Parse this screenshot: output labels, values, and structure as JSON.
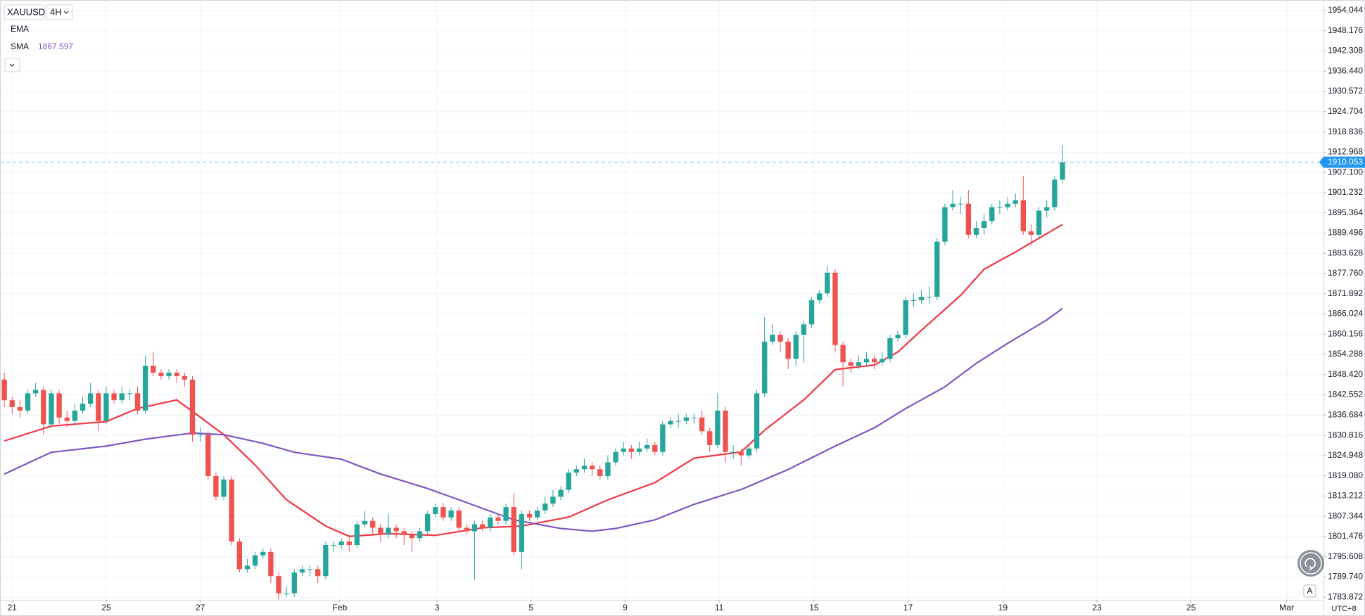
{
  "chart_data": {
    "type": "candlestick",
    "symbol": "XAUUSD",
    "interval": "4H",
    "timezone": "UTC+8",
    "up_color": "#26a69a",
    "down_color": "#ef5350",
    "current_price": 1910.053,
    "current_price_color": "#2196f3",
    "grid": true,
    "xlim": [
      -0.55,
      168.3
    ],
    "ylim": [
      1783.1,
      1957.1
    ],
    "xticks": [
      {
        "value": 1,
        "label": "21"
      },
      {
        "value": 13,
        "label": "25"
      },
      {
        "value": 25,
        "label": "27"
      },
      {
        "value": 42.8,
        "label": "Feb"
      },
      {
        "value": 55.2,
        "label": "3"
      },
      {
        "value": 67.2,
        "label": "5"
      },
      {
        "value": 79.2,
        "label": "9"
      },
      {
        "value": 91.2,
        "label": "11"
      },
      {
        "value": 103.3,
        "label": "15"
      },
      {
        "value": 115.3,
        "label": "17"
      },
      {
        "value": 127.4,
        "label": "19"
      },
      {
        "value": 139.4,
        "label": "23"
      },
      {
        "value": 151.4,
        "label": "25"
      },
      {
        "value": 163.6,
        "label": "Mar"
      }
    ],
    "yticks": [
      1954.044,
      1948.176,
      1942.308,
      {
        "value": 1936.44,
        "label": "1936.440"
      },
      1930.572,
      1924.704,
      1918.836,
      1912.968,
      {
        "value": 1907.1,
        "label": "1907.100"
      },
      1901.232,
      1895.364,
      1889.496,
      1883.628,
      {
        "value": 1877.76,
        "label": "1877.760"
      },
      1871.892,
      1866.024,
      1860.156,
      1854.288,
      {
        "value": 1848.42,
        "label": "1848.420"
      },
      1842.552,
      1836.684,
      1830.816,
      1824.948,
      {
        "value": 1819.08,
        "label": "1819.080"
      },
      1813.212,
      1807.344,
      1801.476,
      1795.608,
      {
        "value": 1789.74,
        "label": "1789.740"
      },
      1783.872
    ],
    "open": [
      1847,
      1841,
      1839,
      1838,
      1843,
      1844,
      1834,
      1843,
      1836,
      1835,
      1838,
      1840,
      1843,
      1835,
      1843,
      1841,
      1843,
      1843,
      1838,
      1851,
      1849,
      1848,
      1849,
      1848,
      1847,
      1831,
      1831,
      1819,
      1813,
      1818,
      1800,
      1792,
      1793,
      1796,
      1797,
      1790,
      1785,
      1785,
      1791,
      1792,
      1792,
      1790,
      1799,
      1799,
      1800,
      1799,
      1805,
      1806,
      1804,
      1802,
      1804,
      1803,
      1802,
      1801,
      1803,
      1808,
      1810,
      1807,
      1809,
      1804,
      1803,
      1805,
      1804,
      1807,
      1806,
      1810,
      1797,
      1808,
      1807,
      1809,
      1811,
      1813,
      1815,
      1820,
      1821,
      1822,
      1821,
      1819,
      1823,
      1826,
      1827,
      1826,
      1827,
      1828,
      1826,
      1834,
      1835,
      1835,
      1836,
      1836,
      1832,
      1828,
      1838,
      1826,
      1826,
      1825,
      1827,
      1843,
      1858,
      1860,
      1858,
      1853,
      1860,
      1863,
      1870,
      1872,
      1878,
      1857,
      1852,
      1851,
      1852,
      1853,
      1852,
      1853,
      1859,
      1860,
      1870,
      1870,
      1871,
      1871,
      1887,
      1897,
      1898,
      1898,
      1889,
      1891,
      1893,
      1897,
      1897,
      1898,
      1899,
      1890,
      1889,
      1896,
      1897,
      1905
    ],
    "high": [
      1849,
      1842,
      1841,
      1844,
      1846,
      1845,
      1844,
      1844,
      1838,
      1840,
      1842,
      1846,
      1844,
      1845,
      1844,
      1845,
      1844,
      1845,
      1854,
      1855,
      1850,
      1850,
      1850,
      1849,
      1848,
      1833,
      1832,
      1820,
      1819,
      1819,
      1801,
      1795,
      1797,
      1798,
      1798,
      1791,
      1787,
      1792,
      1793,
      1793,
      1793,
      1800,
      1800,
      1801,
      1802,
      1806,
      1809,
      1807,
      1805,
      1808,
      1805,
      1804,
      1803,
      1804,
      1809,
      1811,
      1811,
      1810,
      1810,
      1805,
      1806,
      1806,
      1808,
      1808,
      1811,
      1814,
      1809,
      1809,
      1810,
      1813,
      1815,
      1816,
      1821,
      1822,
      1824,
      1823,
      1822,
      1825,
      1827,
      1829,
      1828,
      1829,
      1830,
      1829,
      1835,
      1836,
      1837,
      1837,
      1837,
      1838,
      1833,
      1843,
      1839,
      1828,
      1827,
      1828,
      1844,
      1865,
      1863,
      1861,
      1859,
      1861,
      1864,
      1871,
      1873,
      1880,
      1879,
      1858,
      1853,
      1854,
      1855,
      1854,
      1855,
      1860,
      1861,
      1871,
      1872,
      1873,
      1874,
      1888,
      1898,
      1902,
      1900,
      1902,
      1893,
      1895,
      1898,
      1899,
      1900,
      1901,
      1906,
      1892,
      1897,
      1899,
      1906,
      1915
    ],
    "low": [
      1839,
      1837,
      1836,
      1837,
      1842,
      1831,
      1833,
      1834,
      1833,
      1834,
      1837,
      1839,
      1832,
      1834,
      1840,
      1840,
      1841,
      1837,
      1837,
      1848,
      1847,
      1847,
      1846,
      1845,
      1829,
      1829,
      1818,
      1812,
      1812,
      1799,
      1791,
      1791,
      1792,
      1795,
      1788,
      1783,
      1784,
      1784,
      1790,
      1790,
      1788,
      1789,
      1797,
      1798,
      1797,
      1798,
      1804,
      1802,
      1800,
      1801,
      1801,
      1799,
      1797,
      1800,
      1802,
      1807,
      1806,
      1806,
      1803,
      1802,
      1789,
      1803,
      1803,
      1805,
      1805,
      1796,
      1792,
      1806,
      1806,
      1808,
      1810,
      1812,
      1814,
      1819,
      1820,
      1819,
      1818,
      1818,
      1822,
      1825,
      1824,
      1825,
      1826,
      1825,
      1825,
      1833,
      1833,
      1834,
      1834,
      1831,
      1826,
      1827,
      1823,
      1824,
      1822,
      1824,
      1826,
      1842,
      1857,
      1855,
      1850,
      1851,
      1852,
      1862,
      1869,
      1871,
      1855,
      1845,
      1849,
      1850,
      1851,
      1850,
      1851,
      1852,
      1858,
      1859,
      1868,
      1869,
      1869,
      1870,
      1886,
      1896,
      1895,
      1888,
      1888,
      1889,
      1892,
      1895,
      1896,
      1897,
      1889,
      1886,
      1888,
      1894,
      1896,
      1904
    ],
    "close": [
      1841,
      1839,
      1838,
      1843,
      1844,
      1834,
      1843,
      1836,
      1835,
      1838,
      1840,
      1843,
      1835,
      1843,
      1841,
      1843,
      1843,
      1838,
      1851,
      1849,
      1848,
      1849,
      1848,
      1847,
      1831,
      1831,
      1819,
      1813,
      1818,
      1800,
      1792,
      1793,
      1796,
      1797,
      1790,
      1785,
      1785,
      1791,
      1792,
      1792,
      1790,
      1799,
      1799,
      1800,
      1799,
      1805,
      1806,
      1804,
      1802,
      1804,
      1803,
      1802,
      1801,
      1803,
      1808,
      1810,
      1807,
      1809,
      1804,
      1803,
      1805,
      1804,
      1807,
      1806,
      1810,
      1797,
      1808,
      1807,
      1809,
      1811,
      1813,
      1815,
      1820,
      1821,
      1822,
      1821,
      1819,
      1823,
      1826,
      1827,
      1826,
      1827,
      1828,
      1826,
      1834,
      1835,
      1835,
      1836,
      1836,
      1832,
      1828,
      1838,
      1826,
      1826,
      1825,
      1827,
      1843,
      1858,
      1860,
      1858,
      1853,
      1860,
      1863,
      1870,
      1872,
      1878,
      1857,
      1852,
      1851,
      1852,
      1853,
      1852,
      1853,
      1859,
      1860,
      1870,
      1870,
      1871,
      1871,
      1887,
      1897,
      1898,
      1898,
      1889,
      1891,
      1893,
      1897,
      1897,
      1898,
      1899,
      1890,
      1889,
      1896,
      1897,
      1905,
      1910
    ],
    "lines": [
      {
        "name": "EMA",
        "color": "#f23645",
        "x": [
          0,
          6,
          13,
          17,
          22,
          25,
          28,
          32,
          36,
          41,
          44,
          49,
          55,
          61,
          66,
          72,
          77,
          83,
          88,
          94,
          97,
          102,
          106,
          111,
          114,
          117,
          122,
          125,
          129,
          135
        ],
        "values": [
          1829.2,
          1833.5,
          1834.8,
          1838.6,
          1841.1,
          1836.1,
          1831,
          1822.2,
          1812.1,
          1804.5,
          1801.5,
          1802.3,
          1801.8,
          1804,
          1804.5,
          1807.1,
          1812.1,
          1817.1,
          1824.2,
          1826,
          1832.3,
          1841.1,
          1849.9,
          1851.2,
          1855,
          1861.3,
          1871.4,
          1879,
          1884,
          1892
        ]
      },
      {
        "name": "SMA",
        "color": "#7e57c2",
        "last_value": 1867.597,
        "x": [
          0,
          6,
          13,
          18,
          24,
          28,
          33,
          37,
          43,
          48,
          54,
          59,
          65,
          71,
          75,
          78,
          83,
          88,
          94,
          100,
          106,
          111,
          115,
          120,
          124,
          128,
          133,
          135
        ],
        "values": [
          1819.6,
          1825.9,
          1827.7,
          1829.7,
          1831.5,
          1831,
          1828.5,
          1825.9,
          1823.9,
          1819.6,
          1815.4,
          1811.3,
          1806.3,
          1803.8,
          1803,
          1803.8,
          1806.3,
          1810.8,
          1815.1,
          1820.9,
          1827.7,
          1833,
          1838.6,
          1844.9,
          1851.7,
          1857.5,
          1864.3,
          1867.6
        ]
      }
    ]
  }
}
